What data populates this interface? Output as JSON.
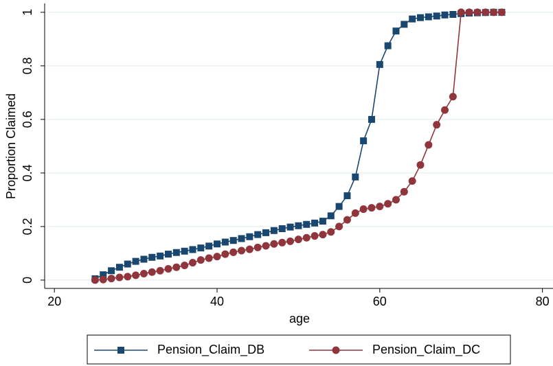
{
  "chart_data": {
    "type": "line",
    "xlabel": "age",
    "ylabel": "Proportion Claimed",
    "x": [
      25,
      26,
      27,
      28,
      29,
      30,
      31,
      32,
      33,
      34,
      35,
      36,
      37,
      38,
      39,
      40,
      41,
      42,
      43,
      44,
      45,
      46,
      47,
      48,
      49,
      50,
      51,
      52,
      53,
      54,
      55,
      56,
      57,
      58,
      59,
      60,
      61,
      62,
      63,
      64,
      65,
      66,
      67,
      68,
      69,
      70,
      71,
      72,
      73,
      74,
      75
    ],
    "series": [
      {
        "name": "Pension_Claim_DB",
        "color": "#1a476f",
        "marker": "square",
        "values": [
          0.005,
          0.02,
          0.035,
          0.048,
          0.06,
          0.07,
          0.078,
          0.085,
          0.09,
          0.097,
          0.103,
          0.108,
          0.114,
          0.12,
          0.127,
          0.135,
          0.142,
          0.148,
          0.155,
          0.162,
          0.17,
          0.177,
          0.185,
          0.192,
          0.198,
          0.203,
          0.208,
          0.213,
          0.22,
          0.24,
          0.275,
          0.315,
          0.385,
          0.52,
          0.6,
          0.805,
          0.875,
          0.93,
          0.955,
          0.975,
          0.98,
          0.983,
          0.986,
          0.99,
          0.992,
          0.995,
          0.997,
          0.998,
          0.999,
          1,
          1
        ]
      },
      {
        "name": "Pension_Claim_DC",
        "color": "#90353b",
        "marker": "circle",
        "values": [
          0,
          0.002,
          0.006,
          0.01,
          0.013,
          0.018,
          0.024,
          0.03,
          0.035,
          0.042,
          0.048,
          0.055,
          0.065,
          0.075,
          0.082,
          0.088,
          0.097,
          0.104,
          0.11,
          0.115,
          0.122,
          0.128,
          0.135,
          0.14,
          0.145,
          0.152,
          0.158,
          0.165,
          0.17,
          0.18,
          0.2,
          0.225,
          0.25,
          0.265,
          0.27,
          0.275,
          0.285,
          0.3,
          0.33,
          0.37,
          0.43,
          0.505,
          0.58,
          0.635,
          0.685,
          1,
          1,
          1,
          1,
          1,
          1
        ]
      }
    ],
    "xlim": [
      18.8,
      81.3
    ],
    "xticks": [
      20,
      40,
      60,
      80
    ],
    "ylim": [
      -0.031,
      1.033
    ],
    "yticks": [
      0,
      0.2,
      0.4,
      0.6,
      0.8,
      1
    ],
    "grid": true,
    "legend": "bottom"
  }
}
